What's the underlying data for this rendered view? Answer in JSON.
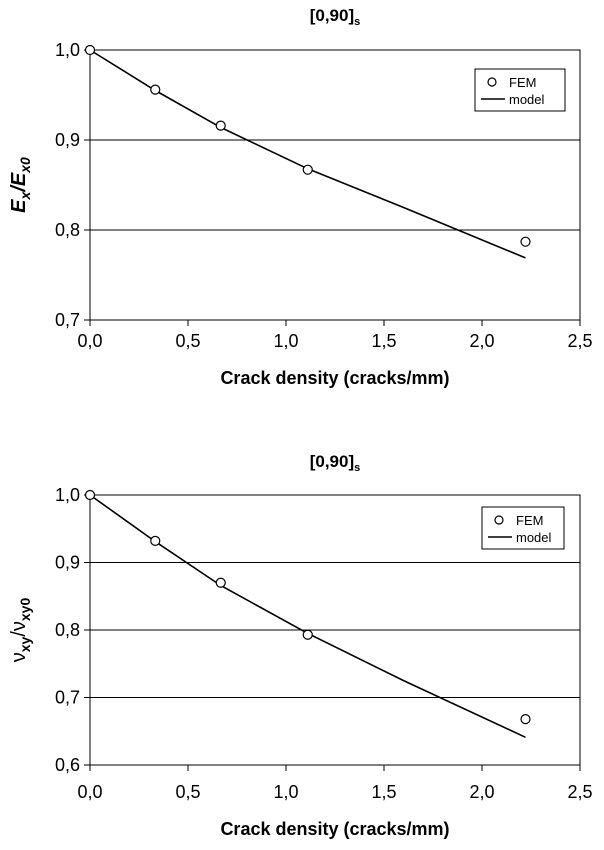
{
  "chart_data": [
    {
      "type": "line",
      "title": "[0,90]",
      "title_subscript": "s",
      "xlabel": "Crack density (cracks/mm)",
      "ylabel": "E",
      "ylabel_subscript": "x",
      "ylabel_denominator": "E",
      "ylabel_denominator_subscript": "x0",
      "xlim": [
        0.0,
        2.5
      ],
      "ylim": [
        0.7,
        1.0
      ],
      "xticks": [
        0.0,
        0.5,
        1.0,
        1.5,
        2.0,
        2.5
      ],
      "xtick_labels": [
        "0,0",
        "0,5",
        "1,0",
        "1,5",
        "2,0",
        "2,5"
      ],
      "yticks": [
        0.7,
        0.8,
        0.9,
        1.0
      ],
      "ytick_labels": [
        "0,7",
        "0,8",
        "0,9",
        "1,0"
      ],
      "grid": "horizontal",
      "legend_position": "top-right",
      "series": [
        {
          "name": "FEM",
          "kind": "markers",
          "x": [
            0.0,
            0.333,
            0.667,
            1.111,
            2.222
          ],
          "y": [
            1.0,
            0.956,
            0.916,
            0.867,
            0.787
          ]
        },
        {
          "name": "model",
          "kind": "line",
          "x": [
            0.0,
            0.333,
            0.667,
            1.111,
            1.6,
            2.222
          ],
          "y": [
            1.0,
            0.955,
            0.914,
            0.868,
            0.825,
            0.769
          ]
        }
      ]
    },
    {
      "type": "line",
      "title": "[0,90]",
      "title_subscript": "s",
      "xlabel": "Crack density (cracks/mm)",
      "ylabel": "ν",
      "ylabel_subscript": "xy",
      "ylabel_denominator": "ν",
      "ylabel_denominator_subscript": "xy0",
      "xlim": [
        0.0,
        2.5
      ],
      "ylim": [
        0.6,
        1.0
      ],
      "xticks": [
        0.0,
        0.5,
        1.0,
        1.5,
        2.0,
        2.5
      ],
      "xtick_labels": [
        "0,0",
        "0,5",
        "1,0",
        "1,5",
        "2,0",
        "2,5"
      ],
      "yticks": [
        0.6,
        0.7,
        0.8,
        0.9,
        1.0
      ],
      "ytick_labels": [
        "0,6",
        "0,7",
        "0,8",
        "0,9",
        "1,0"
      ],
      "grid": "horizontal",
      "legend_position": "top-right",
      "series": [
        {
          "name": "FEM",
          "kind": "markers",
          "x": [
            0.0,
            0.333,
            0.667,
            1.111,
            2.222
          ],
          "y": [
            1.0,
            0.932,
            0.87,
            0.793,
            0.668
          ]
        },
        {
          "name": "model",
          "kind": "line",
          "x": [
            0.0,
            0.333,
            0.667,
            1.111,
            1.6,
            2.222
          ],
          "y": [
            1.0,
            0.931,
            0.866,
            0.795,
            0.725,
            0.641
          ]
        }
      ]
    }
  ]
}
